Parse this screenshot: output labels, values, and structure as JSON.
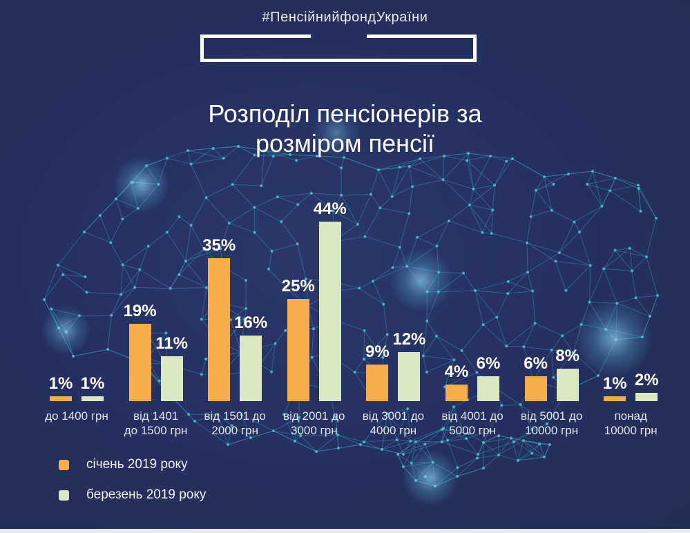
{
  "header": {
    "hashtag": "#ПенсійнийфондУкраїни"
  },
  "title": {
    "line1": "Розподіл пенсіонерів за",
    "line2": "розміром пенсії"
  },
  "chart_data": {
    "type": "bar",
    "title": "Розподіл пенсіонерів за розміром пенсії",
    "categories": [
      "до 1400 грн",
      "від 1401 до 1500 грн",
      "від 1501 до 2000 грн",
      "від 2001 до 3000 грн",
      "від 3001 до 4000 грн",
      "від 4001 до 5000 грн",
      "від 5001 до 10000 грн",
      "понад 10000 грн"
    ],
    "category_label_lines": [
      [
        "до 1400 грн"
      ],
      [
        "від 1401",
        "до 1500 грн"
      ],
      [
        "від 1501 до",
        "2000 грн"
      ],
      [
        "від 2001 до",
        "3000 грн"
      ],
      [
        "від 3001 до",
        "4000 грн"
      ],
      [
        "від 4001 до",
        "5000 грн"
      ],
      [
        "від 5001 до",
        "10000 грн"
      ],
      [
        "понад",
        "10000 грн"
      ]
    ],
    "series": [
      {
        "name": "січень 2019 року",
        "color": "#F7AD4A",
        "values": [
          1,
          19,
          35,
          25,
          9,
          4,
          6,
          1
        ]
      },
      {
        "name": "березень 2019 року",
        "color": "#D9E8C0",
        "values": [
          1,
          11,
          16,
          44,
          12,
          6,
          8,
          2
        ]
      }
    ],
    "value_suffix": "%",
    "ylim": [
      0,
      50
    ],
    "grid": false,
    "legend_position": "bottom-left"
  },
  "palette": {
    "background": "#253163",
    "mesh_line": "#3f9fc0",
    "mesh_node": "#55b8d8",
    "text_primary": "#ffffff",
    "text_secondary": "#e2e5ec",
    "bottom_strip": "#e9e9e9"
  }
}
